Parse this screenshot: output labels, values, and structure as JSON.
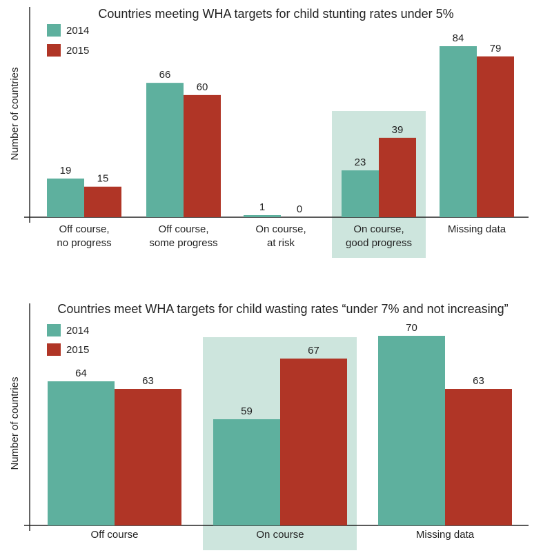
{
  "chart_data": [
    {
      "type": "bar",
      "title": "Countries meeting WHA targets for child stunting rates under 5%",
      "ylabel": "Number of countries",
      "xlabel": "",
      "categories": [
        "Off course,\nno progress",
        "Off course,\nsome progress",
        "On course,\nat risk",
        "On course,\ngood progress",
        "Missing data"
      ],
      "series": [
        {
          "name": "2014",
          "values": [
            19,
            66,
            1,
            23,
            84
          ]
        },
        {
          "name": "2015",
          "values": [
            15,
            60,
            0,
            39,
            79
          ]
        }
      ],
      "highlight_category": "On course,\ngood progress",
      "ylim": [
        0,
        90
      ],
      "grid": false,
      "legend": "top-left"
    },
    {
      "type": "bar",
      "title": "Countries meet WHA targets for child wasting rates “under 7% and not increasing”",
      "ylabel": "Number of countries",
      "xlabel": "",
      "categories": [
        "Off course",
        "On course",
        "Missing data"
      ],
      "series": [
        {
          "name": "2014",
          "values": [
            64,
            59,
            70
          ]
        },
        {
          "name": "2015",
          "values": [
            63,
            67,
            63
          ]
        }
      ],
      "highlight_category": "On course",
      "ylim": [
        45,
        72
      ],
      "grid": false,
      "legend": "top-left"
    }
  ],
  "colors": {
    "series_2014": "#5eb09e",
    "series_2015": "#b03526",
    "highlight": "#cde5dd",
    "axis": "#222222"
  }
}
